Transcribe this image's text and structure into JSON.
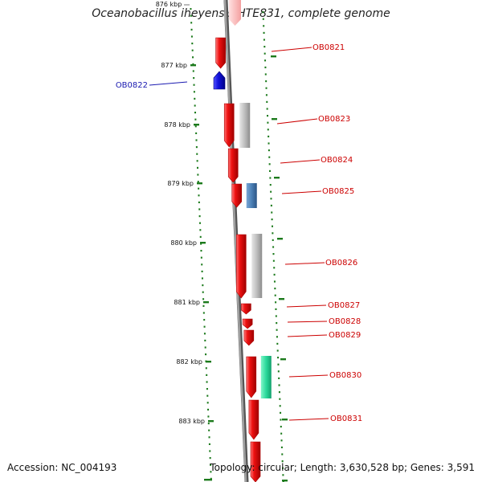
{
  "title": "Oceanobacillus iheyensis HTE831, complete genome",
  "accession": "Accession: NC_004193",
  "topology": "Topology: circular; Length: 3,630,528 bp; Genes: 3,591",
  "colors": {
    "forward_gene": "#ee1111",
    "reverse_gene": "#1111dd",
    "gray_feature": "#bbbbbb",
    "steelblue_feature": "#4b7fb5",
    "green_feature": "#2bd99b",
    "tick_green": "#1c7a1c",
    "backbone": "#808080",
    "forward_label": "#cc0000",
    "reverse_label": "#1a1ab0"
  },
  "ruler": {
    "top_partial_label": "876 kbp",
    "labels": [
      "877 kbp",
      "878 kbp",
      "879 kbp",
      "880 kbp",
      "881 kbp",
      "882 kbp",
      "883 kbp"
    ]
  },
  "genes": [
    {
      "name": "OB0821",
      "strand": "+"
    },
    {
      "name": "OB0822",
      "strand": "-"
    },
    {
      "name": "OB0823",
      "strand": "+"
    },
    {
      "name": "OB0824",
      "strand": "+"
    },
    {
      "name": "OB0825",
      "strand": "+"
    },
    {
      "name": "OB0826",
      "strand": "+"
    },
    {
      "name": "OB0827",
      "strand": "+"
    },
    {
      "name": "OB0828",
      "strand": "+"
    },
    {
      "name": "OB0829",
      "strand": "+"
    },
    {
      "name": "OB0830",
      "strand": "+"
    },
    {
      "name": "OB0831",
      "strand": "+"
    }
  ]
}
